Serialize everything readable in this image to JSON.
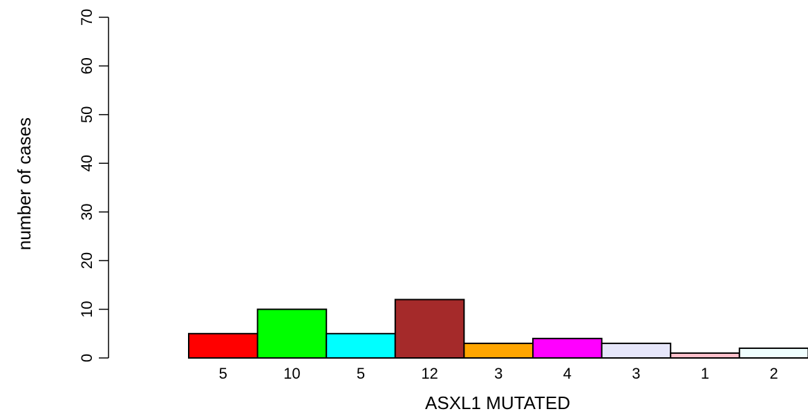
{
  "chart_data": {
    "type": "bar",
    "title": "",
    "xlabel": "ASXL1 MUTATED",
    "ylabel": "number of cases",
    "ylim": [
      0,
      70
    ],
    "yticks": [
      0,
      10,
      20,
      30,
      40,
      50,
      60,
      70
    ],
    "categories": [
      "5",
      "10",
      "5",
      "12",
      "3",
      "4",
      "3",
      "1",
      "2"
    ],
    "values": [
      5,
      10,
      5,
      12,
      3,
      4,
      3,
      1,
      2
    ],
    "colors": [
      "#ff0000",
      "#00ff00",
      "#00ffff",
      "#a52a2a",
      "#ffa500",
      "#ff00ff",
      "#e6e6fa",
      "#ffc0cb",
      "#f0ffff"
    ],
    "grid": false,
    "legend": "none"
  }
}
